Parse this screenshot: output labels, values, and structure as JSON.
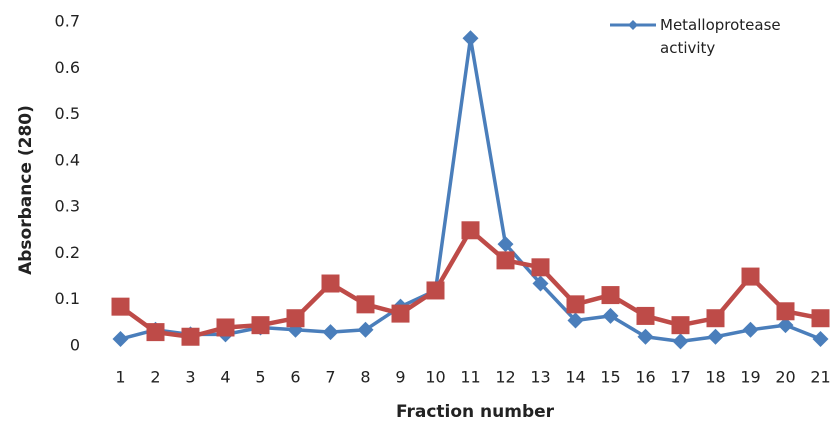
{
  "chart_data": {
    "type": "line",
    "x_label": "Fraction number",
    "y_label": "Absorbance (280)",
    "categories": [
      "1",
      "2",
      "3",
      "4",
      "5",
      "6",
      "7",
      "8",
      "9",
      "10",
      "11",
      "12",
      "13",
      "14",
      "15",
      "16",
      "17",
      "18",
      "19",
      "20",
      "21"
    ],
    "series": [
      {
        "name": "Metalloprotease activity",
        "color": "#4a7ebb",
        "marker": "diamond",
        "values": [
          0.015,
          0.035,
          0.025,
          0.025,
          0.04,
          0.035,
          0.03,
          0.035,
          0.085,
          0.12,
          0.665,
          0.22,
          0.135,
          0.055,
          0.065,
          0.02,
          0.01,
          0.02,
          0.035,
          0.045,
          0.015
        ]
      },
      {
        "color": "#be4b48",
        "marker": "square",
        "values": [
          0.085,
          0.03,
          0.02,
          0.04,
          0.045,
          0.06,
          0.135,
          0.09,
          0.07,
          0.12,
          0.25,
          0.185,
          0.17,
          0.09,
          0.11,
          0.065,
          0.045,
          0.06,
          0.15,
          0.075,
          0.06
        ]
      }
    ],
    "ylim": [
      0,
      0.7
    ],
    "yticks": [
      0,
      0.1,
      0.2,
      0.3,
      0.4,
      0.5,
      0.6,
      0.7
    ],
    "grid": false
  }
}
